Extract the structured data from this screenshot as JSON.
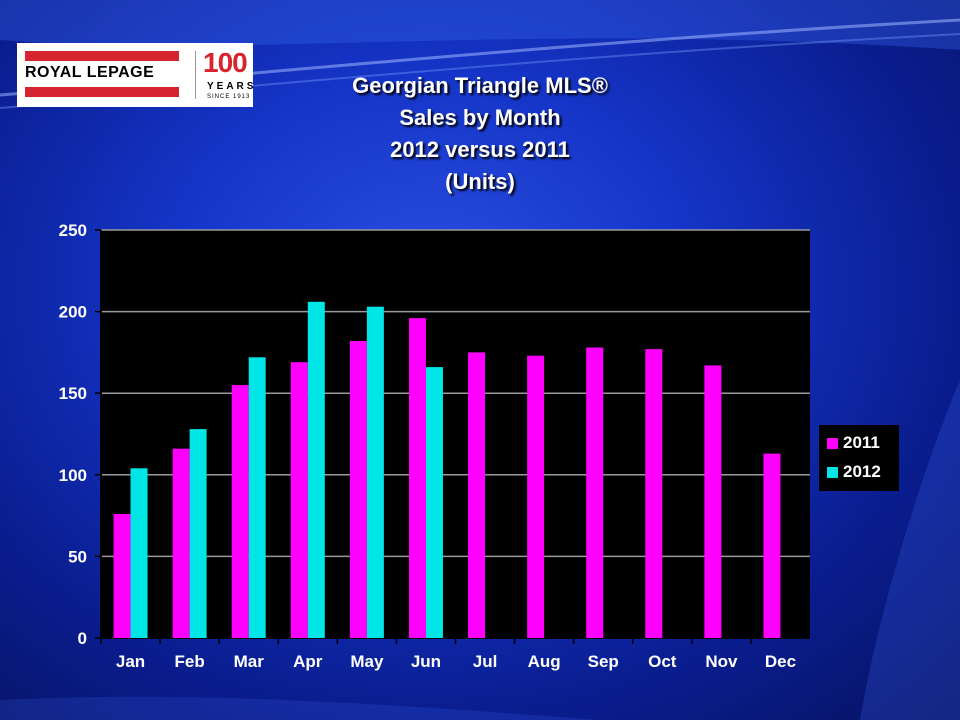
{
  "logo": {
    "brand": "ROYAL LEPAGE",
    "anniversary": "100",
    "years": "YEARS",
    "since": "SINCE 1913"
  },
  "title": {
    "line1": "Georgian Triangle MLS®",
    "line2": "Sales by Month",
    "line3": "2012 versus 2011",
    "line4": "(Units)"
  },
  "colors": {
    "series_2011": "#ff00ff",
    "series_2012": "#00e5e5",
    "plot_bg": "#000000",
    "gridline": "#9a9a9a",
    "tick_text": "#ffffff"
  },
  "chart_data": {
    "type": "bar",
    "title": "Georgian Triangle MLS® Sales by Month 2012 versus 2011 (Units)",
    "xlabel": "",
    "ylabel": "",
    "ylim": [
      0,
      250
    ],
    "yticks": [
      0,
      50,
      100,
      150,
      200,
      250
    ],
    "categories": [
      "Jan",
      "Feb",
      "Mar",
      "Apr",
      "May",
      "Jun",
      "Jul",
      "Aug",
      "Sep",
      "Oct",
      "Nov",
      "Dec"
    ],
    "series": [
      {
        "name": "2011",
        "color": "#ff00ff",
        "values": [
          76,
          116,
          155,
          169,
          182,
          196,
          175,
          173,
          178,
          177,
          167,
          113
        ]
      },
      {
        "name": "2012",
        "color": "#00e5e5",
        "values": [
          104,
          128,
          172,
          206,
          203,
          166,
          null,
          null,
          null,
          null,
          null,
          null
        ]
      }
    ],
    "legend_position": "right",
    "grid": true
  }
}
